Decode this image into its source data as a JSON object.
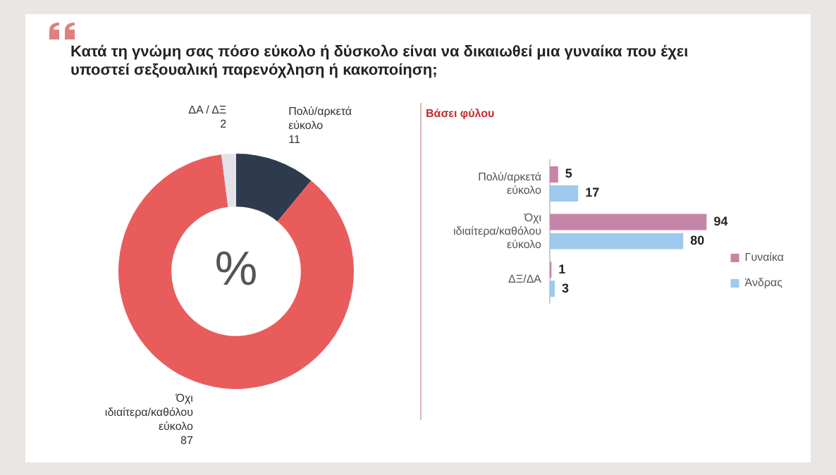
{
  "chart_data": [
    {
      "type": "donut",
      "title": "Κατά τη γνώμη σας πόσο εύκολο ή δύσκολο είναι να δικαιωθεί μια γυναίκα που έχει υποστεί σεξουαλική παρενόχληση ή κακοποίηση;",
      "categories": [
        "Πολύ/αρκετά εύκολο",
        "Όχι ιδιαίτερα/καθόλου εύκολο",
        "ΔΑ / ΔΞ"
      ],
      "values": [
        11,
        87,
        2
      ],
      "colors": [
        "#2e3a4e",
        "#e85c5c",
        "#e2e2e8"
      ],
      "data_labels": true,
      "annotations": [
        "%"
      ]
    },
    {
      "type": "bar",
      "orientation": "horizontal",
      "title": "Βάσει φύλου",
      "categories": [
        "Πολύ/αρκετά εύκολο",
        "Όχι ιδιαίτερα/καθόλου εύκολο",
        "ΔΞ/ΔΑ"
      ],
      "series": [
        {
          "name": "Γυναίκα",
          "color": "#c784a9",
          "values": [
            5,
            94,
            1
          ]
        },
        {
          "name": "Άνδρας",
          "color": "#9ec9ee",
          "values": [
            17,
            80,
            3
          ]
        }
      ],
      "data_labels": true,
      "legend": "right",
      "grid": false,
      "tick_labels": "y"
    }
  ]
}
